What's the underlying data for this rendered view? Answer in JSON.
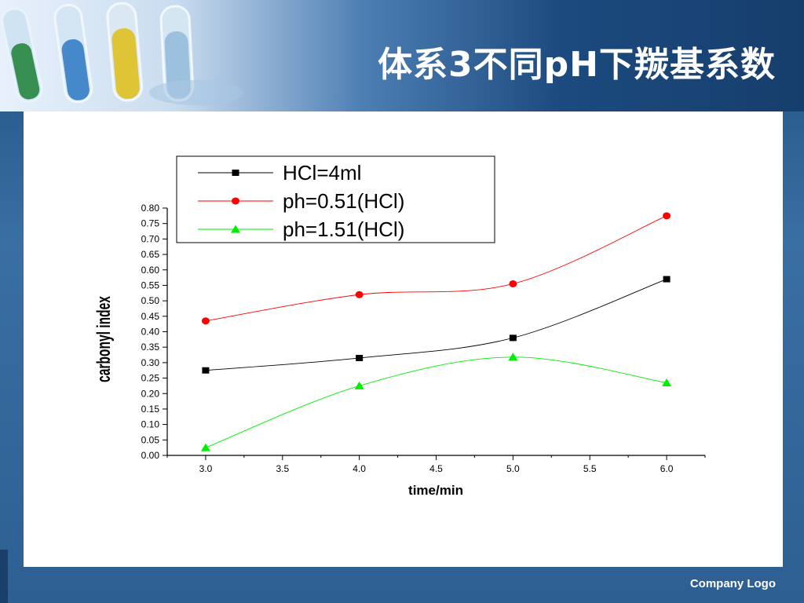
{
  "slide": {
    "title": "体系3不同pH下羰基系数",
    "footer_logo": "Company Logo"
  },
  "colors": {
    "header_dark": "#163e6d",
    "frame": "#2d5f92",
    "series_black": "#000000",
    "series_red": "#ff0000",
    "series_green": "#00ff00"
  },
  "chart_data": {
    "type": "line",
    "xlabel": "time/min",
    "ylabel": "carbonyl index",
    "xlim": [
      2.75,
      6.25
    ],
    "ylim": [
      0.0,
      0.8
    ],
    "x_ticks": [
      "3.0",
      "3.5",
      "4.0",
      "4.5",
      "5.0",
      "5.5",
      "6.0"
    ],
    "y_ticks": [
      "0.00",
      "0.05",
      "0.10",
      "0.15",
      "0.20",
      "0.25",
      "0.30",
      "0.35",
      "0.40",
      "0.45",
      "0.50",
      "0.55",
      "0.60",
      "0.65",
      "0.70",
      "0.75",
      "0.80"
    ],
    "x_tick_values": [
      3.0,
      3.5,
      4.0,
      4.5,
      5.0,
      5.5,
      6.0
    ],
    "y_tick_values": [
      0.0,
      0.05,
      0.1,
      0.15,
      0.2,
      0.25,
      0.3,
      0.35,
      0.4,
      0.45,
      0.5,
      0.55,
      0.6,
      0.65,
      0.7,
      0.75,
      0.8
    ],
    "legend_position": "top",
    "grid": false,
    "series": [
      {
        "name": "HCl=4ml",
        "marker": "square",
        "color": "#000000",
        "x": [
          3.0,
          4.0,
          5.0,
          6.0
        ],
        "y": [
          0.275,
          0.315,
          0.38,
          0.57
        ]
      },
      {
        "name": "ph=0.51(HCl)",
        "marker": "circle",
        "color": "#ff0000",
        "x": [
          3.0,
          4.0,
          5.0,
          6.0
        ],
        "y": [
          0.435,
          0.52,
          0.555,
          0.775
        ]
      },
      {
        "name": "ph=1.51(HCl)",
        "marker": "triangle",
        "color": "#00ee00",
        "x": [
          3.0,
          4.0,
          5.0,
          6.0
        ],
        "y": [
          0.025,
          0.225,
          0.318,
          0.235
        ]
      }
    ]
  }
}
